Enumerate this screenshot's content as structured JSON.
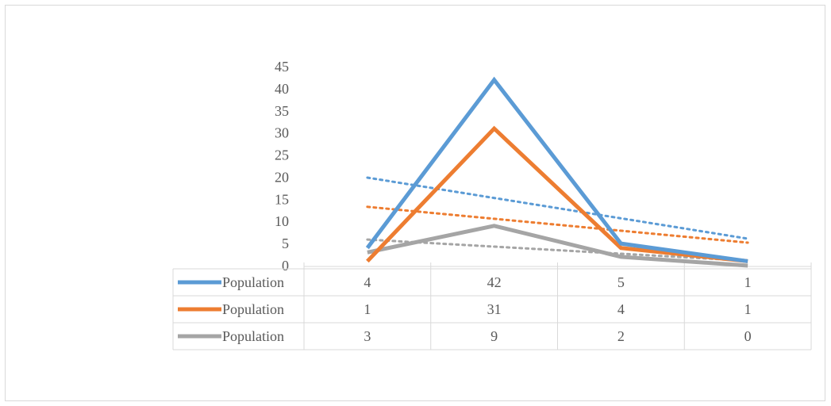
{
  "chart_data": {
    "type": "line",
    "categories": [
      "",
      "",
      "",
      ""
    ],
    "series": [
      {
        "name": "Population",
        "values": [
          4,
          42,
          5,
          1
        ],
        "color": "#5B9BD5",
        "trendline": "linear"
      },
      {
        "name": "Population",
        "values": [
          1,
          31,
          4,
          1
        ],
        "color": "#ED7D31",
        "trendline": "linear"
      },
      {
        "name": "Population",
        "values": [
          3,
          9,
          2,
          0
        ],
        "color": "#A5A5A5",
        "trendline": "linear"
      }
    ],
    "y_ticks": [
      "0",
      "5",
      "10",
      "15",
      "20",
      "25",
      "30",
      "35",
      "40",
      "45"
    ],
    "ylim": [
      0,
      45
    ],
    "grid": false,
    "legend": "data-table",
    "data_table": [
      [
        "4",
        "42",
        "5",
        "1"
      ],
      [
        "1",
        "31",
        "4",
        "1"
      ],
      [
        "3",
        "9",
        "2",
        "0"
      ]
    ]
  }
}
